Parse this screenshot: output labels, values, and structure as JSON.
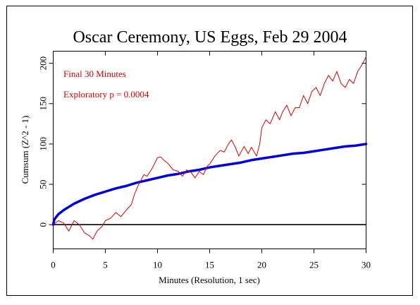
{
  "chart_data": {
    "type": "line",
    "title": "Oscar Ceremony, US Eggs, Feb 29 2004",
    "xlabel": "Minutes (Resolution, 1 sec)",
    "ylabel": "Cumsum (Z^2 - 1)",
    "xlim": [
      0,
      30
    ],
    "ylim": [
      -30,
      215
    ],
    "xticks": [
      0,
      5,
      10,
      15,
      20,
      25,
      30
    ],
    "xtick_labels": [
      "0",
      "5",
      "10",
      "15",
      "20",
      "25",
      "30"
    ],
    "yticks": [
      0,
      50,
      100,
      150,
      200
    ],
    "ytick_labels": [
      "0",
      "50",
      "100",
      "150",
      "200"
    ],
    "grid": false,
    "legend": "none",
    "annotations": [
      {
        "id": "final",
        "text": "Final 30 Minutes",
        "color": "#d40000"
      },
      {
        "id": "pvalue",
        "text": "Exploratory p = 0.0004",
        "color": "#d40000"
      }
    ],
    "series": [
      {
        "role": "cumulative deviation",
        "color": "#d40000",
        "x": [
          0,
          0.5,
          1,
          1.5,
          2,
          2.5,
          3,
          3.5,
          3.8,
          4.2,
          4.7,
          5,
          5.5,
          6,
          6.5,
          7,
          7.5,
          7.8,
          8.2,
          8.7,
          9,
          9.5,
          10,
          10.3,
          10.6,
          11,
          11.5,
          12,
          12.4,
          12.8,
          13.2,
          13.6,
          14,
          14.4,
          14.8,
          15,
          15.5,
          16,
          16.4,
          16.8,
          17.1,
          17.5,
          17.8,
          18.3,
          18.7,
          19,
          19.5,
          19.8,
          20,
          20.4,
          20.8,
          21.3,
          21.7,
          22,
          22.4,
          22.8,
          23.2,
          23.6,
          24,
          24.4,
          24.8,
          25.2,
          25.6,
          26,
          26.4,
          26.8,
          27.2,
          27.6,
          28,
          28.4,
          28.8,
          29.2,
          29.6,
          30
        ],
        "y": [
          0,
          5,
          2,
          -8,
          5,
          0,
          -10,
          -14,
          -18,
          -8,
          -2,
          5,
          8,
          15,
          10,
          18,
          25,
          38,
          50,
          62,
          60,
          70,
          83,
          84,
          80,
          76,
          68,
          66,
          60,
          68,
          65,
          58,
          66,
          62,
          73,
          75,
          85,
          92,
          90,
          100,
          105,
          95,
          85,
          97,
          88,
          96,
          85,
          100,
          120,
          130,
          125,
          140,
          130,
          140,
          148,
          135,
          145,
          145,
          160,
          150,
          165,
          170,
          160,
          175,
          185,
          178,
          190,
          175,
          170,
          180,
          175,
          190,
          198,
          208
        ]
      },
      {
        "role": "expected 0.05 envelope",
        "color": "#0000dd",
        "x": [
          0,
          0.1,
          0.25,
          0.5,
          1,
          1.5,
          2,
          3,
          4,
          5,
          6,
          7,
          8,
          9,
          10,
          11,
          12,
          13,
          14,
          15,
          16,
          17,
          18,
          19,
          20,
          21,
          22,
          23,
          24,
          25,
          26,
          27,
          28,
          29,
          30
        ],
        "y": [
          0,
          6,
          9,
          13,
          18,
          22,
          26,
          32,
          37,
          41,
          45,
          48,
          52,
          55,
          58,
          61,
          63,
          66,
          68,
          71,
          73,
          75,
          77,
          80,
          82,
          84,
          86,
          88,
          89,
          91,
          93,
          95,
          97,
          98,
          100
        ]
      },
      {
        "role": "baseline",
        "color": "#000000",
        "x": [
          0,
          30
        ],
        "y": [
          0,
          0
        ]
      }
    ]
  }
}
